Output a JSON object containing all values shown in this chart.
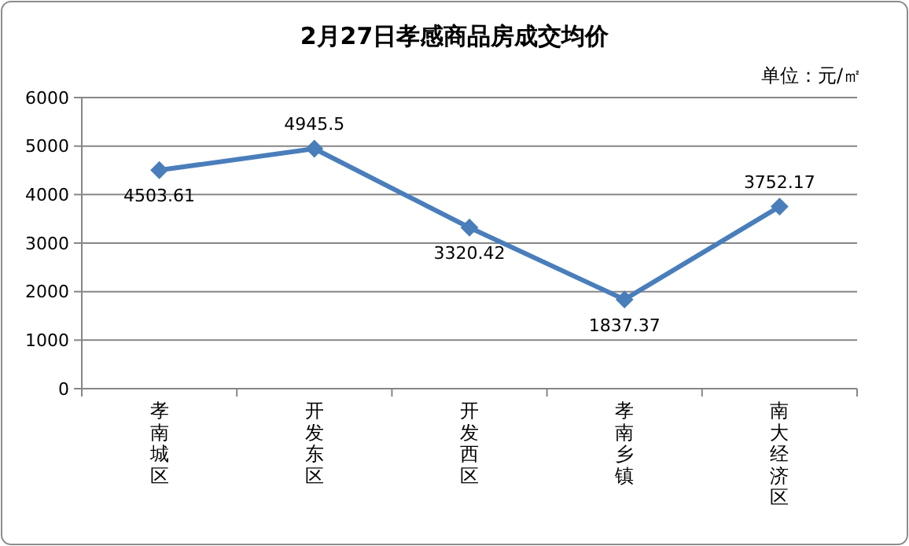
{
  "chart_data": {
    "type": "line",
    "title": "2月27日孝感商品房成交均价",
    "subtitle": "单位：元/㎡",
    "categories": [
      "孝南城区",
      "开发东区",
      "开发西区",
      "孝南乡镇",
      "南大经济区"
    ],
    "series": [
      {
        "color": "#4a7ebb",
        "values": [
          4503.61,
          4945.5,
          3320.42,
          1837.37,
          3752.17
        ]
      }
    ],
    "ylim": [
      0,
      6000
    ],
    "yticks": [
      0,
      1000,
      2000,
      3000,
      4000,
      5000,
      6000
    ],
    "grid": "y",
    "marker": "diamond",
    "line_style": "solid",
    "data_labels": true
  }
}
